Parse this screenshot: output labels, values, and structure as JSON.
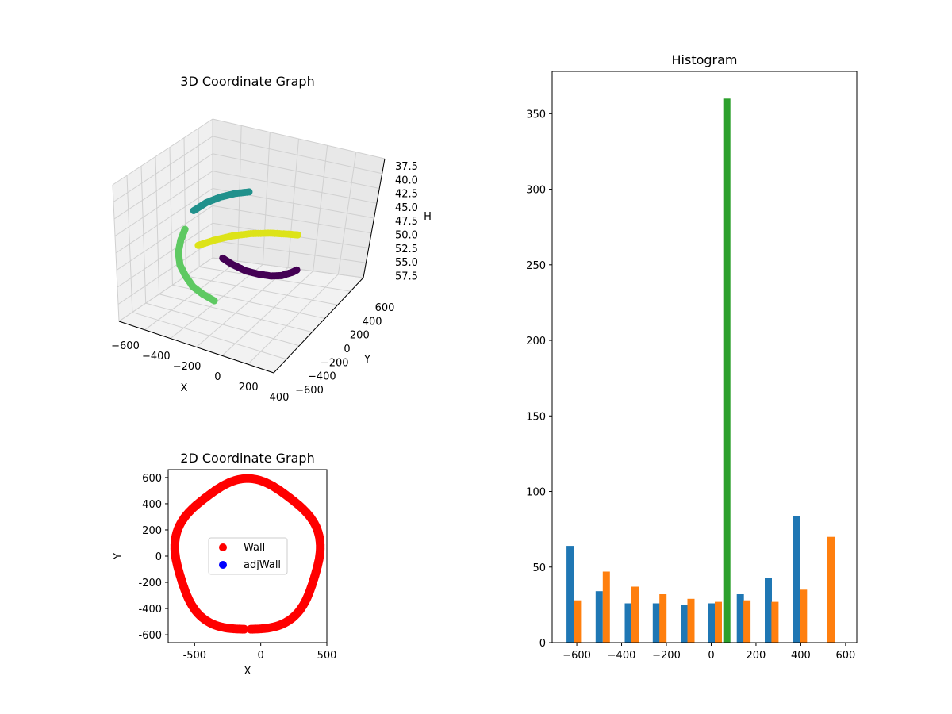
{
  "chart_data": [
    {
      "type": "scatter3d",
      "title": "3D Coordinate Graph",
      "xlabel": "X",
      "ylabel": "Y",
      "zlabel": "H",
      "x_ticks": [
        "−600",
        "−400",
        "−200",
        "0",
        "200",
        "400"
      ],
      "y_ticks": [
        "−600",
        "−400",
        "−200",
        "0",
        "200",
        "400",
        "600"
      ],
      "z_ticks": [
        "37.5",
        "40.0",
        "42.5",
        "45.0",
        "47.5",
        "50.0",
        "52.5",
        "55.0",
        "57.5"
      ],
      "xlim": [
        -700,
        500
      ],
      "ylim": [
        -650,
        650
      ],
      "zlim": [
        37.5,
        57.5
      ],
      "colormap": "viridis",
      "series": [
        {
          "values": [
            [
              0,
              -580,
              50.5
            ],
            [
              -100,
              -560,
              50.3
            ],
            [
              -200,
              -520,
              50.1
            ],
            [
              -300,
              -440,
              49.8
            ],
            [
              -400,
              -340,
              49.5
            ],
            [
              -480,
              -220,
              49.0
            ],
            [
              -540,
              -80,
              48.6
            ],
            [
              -580,
              60,
              48.0
            ]
          ]
        },
        {
          "values": [
            [
              -560,
              200,
              51.5
            ],
            [
              -500,
              320,
              51.2
            ],
            [
              -420,
              420,
              50.8
            ],
            [
              -320,
              500,
              50.4
            ],
            [
              -200,
              560,
              50.0
            ],
            [
              -80,
              590,
              49.6
            ],
            [
              0,
              600,
              49.3
            ]
          ]
        },
        {
          "values": [
            [
              400,
              -150,
              46.5
            ],
            [
              420,
              -250,
              46.0
            ],
            [
              410,
              -380,
              45.6
            ],
            [
              380,
              -470,
              45.2
            ],
            [
              320,
              -540,
              44.8
            ],
            [
              250,
              -590,
              44.4
            ],
            [
              150,
              -600,
              44.0
            ],
            [
              60,
              -590,
              43.6
            ]
          ]
        },
        {
          "values": [
            [
              -540,
              100,
              45.5
            ],
            [
              -520,
              240,
              45.2
            ],
            [
              -480,
              360,
              45.0
            ],
            [
              -420,
              460,
              44.8
            ],
            [
              -340,
              540,
              44.6
            ]
          ]
        }
      ]
    },
    {
      "type": "scatter",
      "title": "2D Coordinate Graph",
      "xlabel": "X",
      "ylabel": "Y",
      "x_ticks": [
        -500,
        0,
        500
      ],
      "y_ticks": [
        -600,
        -400,
        -200,
        0,
        200,
        400,
        600
      ],
      "xlim": [
        -700,
        500
      ],
      "ylim": [
        -660,
        660
      ],
      "series": [
        {
          "name": "Wall",
          "color": "#ff0000",
          "shape": "ring",
          "center": [
            -100,
            0
          ],
          "radius_x": 545,
          "radius_y": 575,
          "gaps": [
            [
              -0.6,
              0.2
            ]
          ]
        },
        {
          "name": "adjWall",
          "color": "#0000ff",
          "points": []
        }
      ],
      "legend": "center"
    },
    {
      "type": "bar",
      "title": "Histogram",
      "xlabel": "",
      "ylabel": "",
      "xlim": [
        -710,
        650
      ],
      "ylim": [
        0,
        378
      ],
      "x_ticks": [
        -600,
        -400,
        -200,
        0,
        200,
        400,
        600
      ],
      "x_tick_labels": [
        "−600",
        "−400",
        "−200",
        "0",
        "200",
        "400",
        "600"
      ],
      "y_ticks": [
        0,
        50,
        100,
        150,
        200,
        250,
        300,
        350
      ],
      "series": [
        {
          "color": "#1f77b4",
          "x": [
            -630,
            -500,
            -370,
            -245,
            -120,
            0,
            130,
            255,
            380
          ],
          "values": [
            64,
            34,
            26,
            26,
            25,
            26,
            32,
            43,
            84
          ]
        },
        {
          "color": "#ff7f0e",
          "x": [
            -597,
            -468,
            -340,
            -215,
            -90,
            32,
            160,
            285,
            412,
            535
          ],
          "values": [
            28,
            47,
            37,
            32,
            29,
            27,
            28,
            27,
            35,
            70
          ]
        },
        {
          "color": "#2ca02c",
          "x": [
            70
          ],
          "values": [
            360
          ]
        }
      ],
      "bar_width": 32
    }
  ]
}
